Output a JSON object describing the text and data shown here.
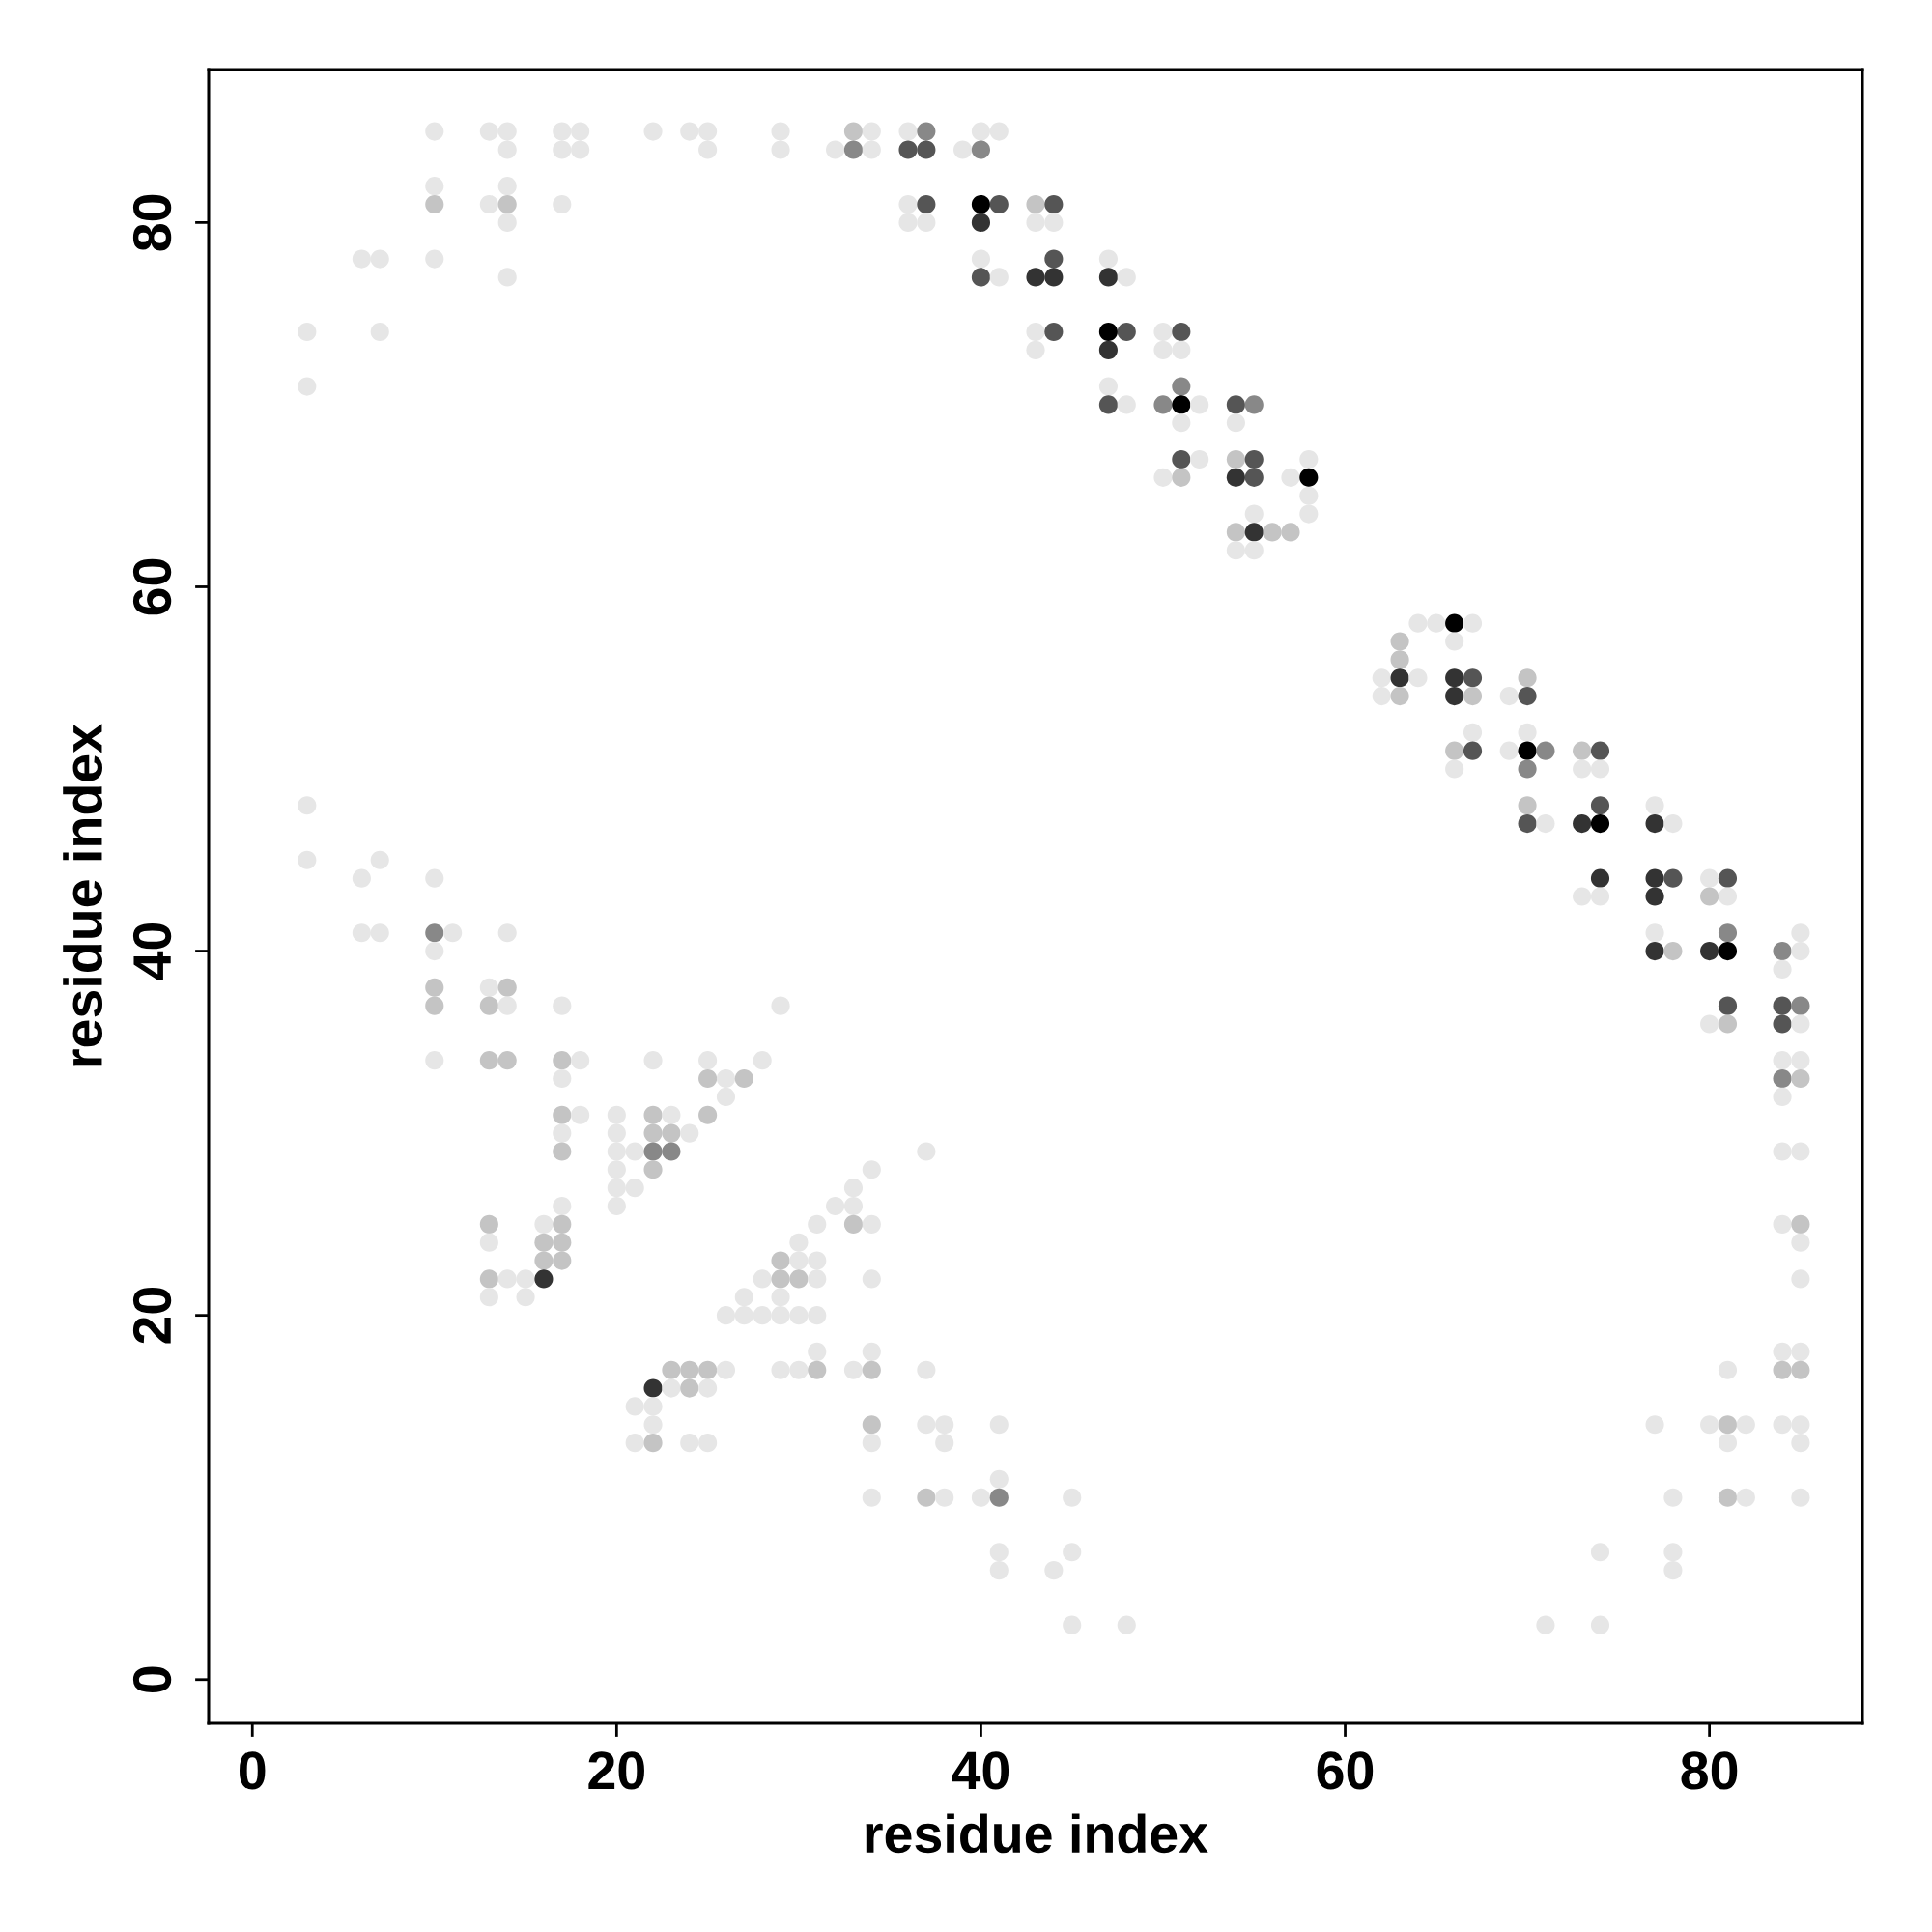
{
  "chart_data": {
    "type": "scatter",
    "xlabel": "residue index",
    "ylabel": "residue index",
    "xlim": [
      -2.4,
      88.4
    ],
    "ylim": [
      -2.4,
      88.4
    ],
    "xticks": [
      0,
      20,
      40,
      60,
      80
    ],
    "yticks": [
      0,
      20,
      40,
      60,
      80
    ],
    "marker": "circle",
    "series": [
      {
        "x": [
          10,
          13,
          14,
          17,
          18,
          22,
          24,
          25,
          29,
          33,
          34,
          36,
          37,
          40,
          41
        ],
        "values": [
          85,
          85,
          85,
          85,
          85,
          85,
          85,
          85,
          85,
          85,
          85,
          85,
          85,
          85,
          85
        ],
        "colors": [
          "#e6e6e6",
          "#e6e6e6",
          "#e6e6e6",
          "#e6e6e6",
          "#e6e6e6",
          "#e6e6e6",
          "#e6e6e6",
          "#e6e6e6",
          "#e6e6e6",
          "#c4c4c4",
          "#e6e6e6",
          "#e6e6e6",
          "#888888",
          "#e6e6e6",
          "#e6e6e6"
        ]
      },
      {
        "x": [
          14,
          17,
          18,
          25,
          29,
          32,
          33,
          34,
          36,
          37,
          39,
          40
        ],
        "values": [
          84,
          84,
          84,
          84,
          84,
          84,
          84,
          84,
          84,
          84,
          84,
          84
        ],
        "colors": [
          "#e6e6e6",
          "#e6e6e6",
          "#e6e6e6",
          "#e6e6e6",
          "#e6e6e6",
          "#e6e6e6",
          "#888888",
          "#e6e6e6",
          "#555555",
          "#555555",
          "#e6e6e6",
          "#888888"
        ]
      },
      {
        "x": [
          10,
          14
        ],
        "values": [
          82,
          82
        ],
        "colors": [
          "#e6e6e6",
          "#e6e6e6"
        ]
      },
      {
        "x": [
          10,
          13,
          14,
          17,
          36,
          37,
          40,
          41,
          43,
          44
        ],
        "values": [
          81,
          81,
          81,
          81,
          81,
          81,
          81,
          81,
          81,
          81
        ],
        "colors": [
          "#c4c4c4",
          "#e6e6e6",
          "#c4c4c4",
          "#e6e6e6",
          "#e6e6e6",
          "#555555",
          "#000000",
          "#555555",
          "#c4c4c4",
          "#555555"
        ]
      },
      {
        "x": [
          14,
          36,
          37,
          40,
          43,
          44
        ],
        "values": [
          80,
          80,
          80,
          80,
          80,
          80
        ],
        "colors": [
          "#e6e6e6",
          "#e6e6e6",
          "#e6e6e6",
          "#333333",
          "#e6e6e6",
          "#e6e6e6"
        ]
      },
      {
        "x": [
          6,
          7,
          10,
          40,
          44,
          47
        ],
        "values": [
          78,
          78,
          78,
          78,
          78,
          78
        ],
        "colors": [
          "#e6e6e6",
          "#e6e6e6",
          "#e6e6e6",
          "#e6e6e6",
          "#555555",
          "#e6e6e6"
        ]
      },
      {
        "x": [
          14,
          40,
          41,
          43,
          44,
          47,
          48
        ],
        "values": [
          77,
          77,
          77,
          77,
          77,
          77,
          77
        ],
        "colors": [
          "#e6e6e6",
          "#555555",
          "#e6e6e6",
          "#333333",
          "#333333",
          "#333333",
          "#e6e6e6"
        ]
      },
      {
        "x": [
          3,
          7,
          43,
          44,
          47,
          48,
          50,
          51
        ],
        "values": [
          74,
          74,
          74,
          74,
          74,
          74,
          74,
          74
        ],
        "colors": [
          "#e6e6e6",
          "#e6e6e6",
          "#e6e6e6",
          "#555555",
          "#000000",
          "#555555",
          "#e6e6e6",
          "#555555"
        ]
      },
      {
        "x": [
          43,
          47,
          50,
          51
        ],
        "values": [
          73,
          73,
          73,
          73
        ],
        "colors": [
          "#e6e6e6",
          "#333333",
          "#e6e6e6",
          "#e6e6e6"
        ]
      },
      {
        "x": [
          3,
          47,
          51
        ],
        "values": [
          71,
          71,
          71
        ],
        "colors": [
          "#e6e6e6",
          "#e6e6e6",
          "#888888"
        ]
      },
      {
        "x": [
          47,
          48,
          50,
          51,
          52,
          54,
          55
        ],
        "values": [
          70,
          70,
          70,
          70,
          70,
          70,
          70
        ],
        "colors": [
          "#555555",
          "#e6e6e6",
          "#888888",
          "#000000",
          "#e6e6e6",
          "#555555",
          "#888888"
        ]
      },
      {
        "x": [
          51,
          54
        ],
        "values": [
          69,
          69
        ],
        "colors": [
          "#e6e6e6",
          "#e6e6e6"
        ]
      },
      {
        "x": [
          51,
          52,
          54,
          55,
          58
        ],
        "values": [
          67,
          67,
          67,
          67,
          67
        ],
        "colors": [
          "#555555",
          "#e6e6e6",
          "#c4c4c4",
          "#555555",
          "#e6e6e6"
        ]
      },
      {
        "x": [
          50,
          51,
          54,
          55,
          57,
          58
        ],
        "values": [
          66,
          66,
          66,
          66,
          66,
          66
        ],
        "colors": [
          "#e6e6e6",
          "#c4c4c4",
          "#333333",
          "#555555",
          "#e6e6e6",
          "#000000"
        ]
      },
      {
        "x": [
          58
        ],
        "values": [
          65
        ],
        "colors": [
          "#e6e6e6"
        ]
      },
      {
        "x": [
          55,
          58
        ],
        "values": [
          64,
          64
        ],
        "colors": [
          "#e6e6e6",
          "#e6e6e6"
        ]
      },
      {
        "x": [
          54,
          55,
          56,
          57
        ],
        "values": [
          63,
          63,
          63,
          63
        ],
        "colors": [
          "#c4c4c4",
          "#333333",
          "#c4c4c4",
          "#c4c4c4"
        ]
      },
      {
        "x": [
          54,
          55
        ],
        "values": [
          62,
          62
        ],
        "colors": [
          "#e6e6e6",
          "#e6e6e6"
        ]
      },
      {
        "x": [
          64,
          65,
          66,
          67
        ],
        "values": [
          58,
          58,
          58,
          58
        ],
        "colors": [
          "#e6e6e6",
          "#e6e6e6",
          "#000000",
          "#e6e6e6"
        ]
      },
      {
        "x": [
          63,
          66
        ],
        "values": [
          57,
          57
        ],
        "colors": [
          "#c4c4c4",
          "#e6e6e6"
        ]
      },
      {
        "x": [
          63
        ],
        "values": [
          56
        ],
        "colors": [
          "#c4c4c4"
        ]
      },
      {
        "x": [
          62,
          63,
          64,
          66,
          67,
          70
        ],
        "values": [
          55,
          55,
          55,
          55,
          55,
          55
        ],
        "colors": [
          "#e6e6e6",
          "#333333",
          "#e6e6e6",
          "#333333",
          "#555555",
          "#c4c4c4"
        ]
      },
      {
        "x": [
          62,
          63,
          66,
          67,
          69,
          70
        ],
        "values": [
          54,
          54,
          54,
          54,
          54,
          54
        ],
        "colors": [
          "#e6e6e6",
          "#c4c4c4",
          "#333333",
          "#c4c4c4",
          "#e6e6e6",
          "#555555"
        ]
      },
      {
        "x": [
          67,
          70
        ],
        "values": [
          52,
          52
        ],
        "colors": [
          "#e6e6e6",
          "#e6e6e6"
        ]
      },
      {
        "x": [
          66,
          67,
          69,
          70,
          71,
          73,
          74
        ],
        "values": [
          51,
          51,
          51,
          51,
          51,
          51,
          51
        ],
        "colors": [
          "#c4c4c4",
          "#555555",
          "#e6e6e6",
          "#000000",
          "#888888",
          "#c4c4c4",
          "#555555"
        ]
      },
      {
        "x": [
          66,
          70,
          73,
          74
        ],
        "values": [
          50,
          50,
          50,
          50
        ],
        "colors": [
          "#e6e6e6",
          "#888888",
          "#e6e6e6",
          "#e6e6e6"
        ]
      },
      {
        "x": [
          3,
          70,
          74,
          77
        ],
        "values": [
          48,
          48,
          48,
          48
        ],
        "colors": [
          "#e6e6e6",
          "#c4c4c4",
          "#555555",
          "#e6e6e6"
        ]
      },
      {
        "x": [
          70,
          71,
          73,
          74,
          77,
          78
        ],
        "values": [
          47,
          47,
          47,
          47,
          47,
          47
        ],
        "colors": [
          "#555555",
          "#e6e6e6",
          "#333333",
          "#000000",
          "#333333",
          "#e6e6e6"
        ]
      },
      {
        "x": [
          3,
          7
        ],
        "values": [
          45,
          45
        ],
        "colors": [
          "#e6e6e6",
          "#e6e6e6"
        ]
      },
      {
        "x": [
          6,
          10,
          74,
          77,
          78,
          80,
          81
        ],
        "values": [
          44,
          44,
          44,
          44,
          44,
          44,
          44
        ],
        "colors": [
          "#e6e6e6",
          "#e6e6e6",
          "#333333",
          "#333333",
          "#555555",
          "#e6e6e6",
          "#555555"
        ]
      },
      {
        "x": [
          73,
          74,
          77,
          80,
          81
        ],
        "values": [
          43,
          43,
          43,
          43,
          43
        ],
        "colors": [
          "#e6e6e6",
          "#e6e6e6",
          "#333333",
          "#c4c4c4",
          "#e6e6e6"
        ]
      },
      {
        "x": [
          6,
          7,
          10,
          11,
          14,
          77,
          81,
          85
        ],
        "values": [
          41,
          41,
          41,
          41,
          41,
          41,
          41,
          41
        ],
        "colors": [
          "#e6e6e6",
          "#e6e6e6",
          "#888888",
          "#e6e6e6",
          "#e6e6e6",
          "#e6e6e6",
          "#888888",
          "#e6e6e6"
        ]
      },
      {
        "x": [
          10,
          77,
          78,
          80,
          81,
          84,
          85
        ],
        "values": [
          40,
          40,
          40,
          40,
          40,
          40,
          40
        ],
        "colors": [
          "#e6e6e6",
          "#333333",
          "#c4c4c4",
          "#333333",
          "#000000",
          "#888888",
          "#e6e6e6"
        ]
      },
      {
        "x": [
          84
        ],
        "values": [
          39
        ],
        "colors": [
          "#e6e6e6"
        ]
      },
      {
        "x": [
          10,
          13,
          14
        ],
        "values": [
          38,
          38,
          38
        ],
        "colors": [
          "#c4c4c4",
          "#e6e6e6",
          "#c4c4c4"
        ]
      },
      {
        "x": [
          10,
          13,
          14,
          17,
          29,
          81,
          84,
          85
        ],
        "values": [
          37,
          37,
          37,
          37,
          37,
          37,
          37,
          37
        ],
        "colors": [
          "#c4c4c4",
          "#c4c4c4",
          "#e6e6e6",
          "#e6e6e6",
          "#e6e6e6",
          "#555555",
          "#555555",
          "#888888"
        ]
      },
      {
        "x": [
          80,
          81,
          84,
          85
        ],
        "values": [
          36,
          36,
          36,
          36
        ],
        "colors": [
          "#e6e6e6",
          "#c4c4c4",
          "#555555",
          "#e6e6e6"
        ]
      },
      {
        "x": [
          10,
          13,
          14,
          17,
          18,
          22,
          25,
          28,
          84,
          85
        ],
        "values": [
          34,
          34,
          34,
          34,
          34,
          34,
          34,
          34,
          34,
          34
        ],
        "colors": [
          "#e6e6e6",
          "#c4c4c4",
          "#c4c4c4",
          "#c4c4c4",
          "#e6e6e6",
          "#e6e6e6",
          "#e6e6e6",
          "#e6e6e6",
          "#e6e6e6",
          "#e6e6e6"
        ]
      },
      {
        "x": [
          17,
          25,
          26,
          27,
          84,
          85
        ],
        "values": [
          33,
          33,
          33,
          33,
          33,
          33
        ],
        "colors": [
          "#e6e6e6",
          "#c4c4c4",
          "#e6e6e6",
          "#c4c4c4",
          "#888888",
          "#c4c4c4"
        ]
      },
      {
        "x": [
          26,
          84
        ],
        "values": [
          32,
          32
        ],
        "colors": [
          "#e6e6e6",
          "#e6e6e6"
        ]
      },
      {
        "x": [
          17,
          18,
          20,
          22,
          23,
          25
        ],
        "values": [
          31,
          31,
          31,
          31,
          31,
          31
        ],
        "colors": [
          "#c4c4c4",
          "#e6e6e6",
          "#e6e6e6",
          "#c4c4c4",
          "#e6e6e6",
          "#c4c4c4"
        ]
      },
      {
        "x": [
          17,
          20,
          22,
          23,
          24
        ],
        "values": [
          30,
          30,
          30,
          30,
          30
        ],
        "colors": [
          "#e6e6e6",
          "#e6e6e6",
          "#c4c4c4",
          "#c4c4c4",
          "#e6e6e6"
        ]
      },
      {
        "x": [
          17,
          20,
          21,
          22,
          23,
          37,
          84,
          85
        ],
        "values": [
          29,
          29,
          29,
          29,
          29,
          29,
          29,
          29
        ],
        "colors": [
          "#c4c4c4",
          "#e6e6e6",
          "#e6e6e6",
          "#888888",
          "#888888",
          "#e6e6e6",
          "#e6e6e6",
          "#e6e6e6"
        ]
      },
      {
        "x": [
          20,
          22,
          34
        ],
        "values": [
          28,
          28,
          28
        ],
        "colors": [
          "#e6e6e6",
          "#c4c4c4",
          "#e6e6e6"
        ]
      },
      {
        "x": [
          20,
          21,
          33
        ],
        "values": [
          27,
          27,
          27
        ],
        "colors": [
          "#e6e6e6",
          "#e6e6e6",
          "#e6e6e6"
        ]
      },
      {
        "x": [
          17,
          20,
          32,
          33
        ],
        "values": [
          26,
          26,
          26,
          26
        ],
        "colors": [
          "#e6e6e6",
          "#e6e6e6",
          "#e6e6e6",
          "#e6e6e6"
        ]
      },
      {
        "x": [
          13,
          16,
          17,
          31,
          33,
          34,
          84,
          85
        ],
        "values": [
          25,
          25,
          25,
          25,
          25,
          25,
          25,
          25
        ],
        "colors": [
          "#c4c4c4",
          "#e6e6e6",
          "#c4c4c4",
          "#e6e6e6",
          "#c4c4c4",
          "#e6e6e6",
          "#e6e6e6",
          "#c4c4c4"
        ]
      },
      {
        "x": [
          13,
          16,
          17,
          30,
          85
        ],
        "values": [
          24,
          24,
          24,
          24,
          24
        ],
        "colors": [
          "#e6e6e6",
          "#c4c4c4",
          "#c4c4c4",
          "#e6e6e6",
          "#e6e6e6"
        ]
      },
      {
        "x": [
          16,
          17,
          29,
          30,
          31
        ],
        "values": [
          23,
          23,
          23,
          23,
          23
        ],
        "colors": [
          "#c4c4c4",
          "#c4c4c4",
          "#c4c4c4",
          "#e6e6e6",
          "#e6e6e6"
        ]
      },
      {
        "x": [
          13,
          14,
          15,
          16,
          28,
          29,
          30,
          31,
          34,
          85
        ],
        "values": [
          22,
          22,
          22,
          22,
          22,
          22,
          22,
          22,
          22,
          22
        ],
        "colors": [
          "#c4c4c4",
          "#e6e6e6",
          "#e6e6e6",
          "#333333",
          "#e6e6e6",
          "#c4c4c4",
          "#c4c4c4",
          "#e6e6e6",
          "#e6e6e6",
          "#e6e6e6"
        ]
      },
      {
        "x": [
          13,
          15,
          27,
          29
        ],
        "values": [
          21,
          21,
          21,
          21
        ],
        "colors": [
          "#e6e6e6",
          "#e6e6e6",
          "#e6e6e6",
          "#e6e6e6"
        ]
      },
      {
        "x": [
          26,
          27,
          28,
          29,
          30,
          31
        ],
        "values": [
          20,
          20,
          20,
          20,
          20,
          20
        ],
        "colors": [
          "#e6e6e6",
          "#e6e6e6",
          "#e6e6e6",
          "#e6e6e6",
          "#e6e6e6",
          "#e6e6e6"
        ]
      },
      {
        "x": [
          31,
          34,
          84,
          85
        ],
        "values": [
          18,
          18,
          18,
          18
        ],
        "colors": [
          "#e6e6e6",
          "#e6e6e6",
          "#e6e6e6",
          "#e6e6e6"
        ]
      },
      {
        "x": [
          23,
          24,
          25,
          26,
          29,
          30,
          31,
          33,
          34,
          37,
          81,
          84,
          85
        ],
        "values": [
          17,
          17,
          17,
          17,
          17,
          17,
          17,
          17,
          17,
          17,
          17,
          17,
          17
        ],
        "colors": [
          "#c4c4c4",
          "#c4c4c4",
          "#c4c4c4",
          "#e6e6e6",
          "#e6e6e6",
          "#e6e6e6",
          "#c4c4c4",
          "#e6e6e6",
          "#c4c4c4",
          "#e6e6e6",
          "#e6e6e6",
          "#c4c4c4",
          "#c4c4c4"
        ]
      },
      {
        "x": [
          22,
          23,
          24,
          25
        ],
        "values": [
          16,
          16,
          16,
          16
        ],
        "colors": [
          "#333333",
          "#e6e6e6",
          "#c4c4c4",
          "#e6e6e6"
        ]
      },
      {
        "x": [
          21,
          22
        ],
        "values": [
          15,
          15
        ],
        "colors": [
          "#e6e6e6",
          "#e6e6e6"
        ]
      },
      {
        "x": [
          22,
          34,
          37,
          38,
          41,
          77,
          80,
          81,
          82,
          84,
          85
        ],
        "values": [
          14,
          14,
          14,
          14,
          14,
          14,
          14,
          14,
          14,
          14,
          14
        ],
        "colors": [
          "#e6e6e6",
          "#c4c4c4",
          "#e6e6e6",
          "#e6e6e6",
          "#e6e6e6",
          "#e6e6e6",
          "#e6e6e6",
          "#c4c4c4",
          "#e6e6e6",
          "#e6e6e6",
          "#e6e6e6"
        ]
      },
      {
        "x": [
          21,
          22,
          24,
          25,
          34,
          38,
          81,
          85
        ],
        "values": [
          13,
          13,
          13,
          13,
          13,
          13,
          13,
          13
        ],
        "colors": [
          "#e6e6e6",
          "#c4c4c4",
          "#e6e6e6",
          "#e6e6e6",
          "#e6e6e6",
          "#e6e6e6",
          "#e6e6e6",
          "#e6e6e6"
        ]
      },
      {
        "x": [
          41
        ],
        "values": [
          11
        ],
        "colors": [
          "#e6e6e6"
        ]
      },
      {
        "x": [
          34,
          37,
          38,
          40,
          41,
          45,
          78,
          81,
          82,
          85
        ],
        "values": [
          10,
          10,
          10,
          10,
          10,
          10,
          10,
          10,
          10,
          10
        ],
        "colors": [
          "#e6e6e6",
          "#c4c4c4",
          "#e6e6e6",
          "#e6e6e6",
          "#888888",
          "#e6e6e6",
          "#e6e6e6",
          "#c4c4c4",
          "#e6e6e6",
          "#e6e6e6"
        ]
      },
      {
        "x": [
          41,
          45,
          74,
          78
        ],
        "values": [
          7,
          7,
          7,
          7
        ],
        "colors": [
          "#e6e6e6",
          "#e6e6e6",
          "#e6e6e6",
          "#e6e6e6"
        ]
      },
      {
        "x": [
          41,
          44,
          78
        ],
        "values": [
          6,
          6,
          6
        ],
        "colors": [
          "#e6e6e6",
          "#e6e6e6",
          "#e6e6e6"
        ]
      },
      {
        "x": [
          45,
          48,
          71,
          74
        ],
        "values": [
          3,
          3,
          3,
          3
        ],
        "colors": [
          "#e6e6e6",
          "#e6e6e6",
          "#e6e6e6",
          "#e6e6e6"
        ]
      }
    ]
  }
}
